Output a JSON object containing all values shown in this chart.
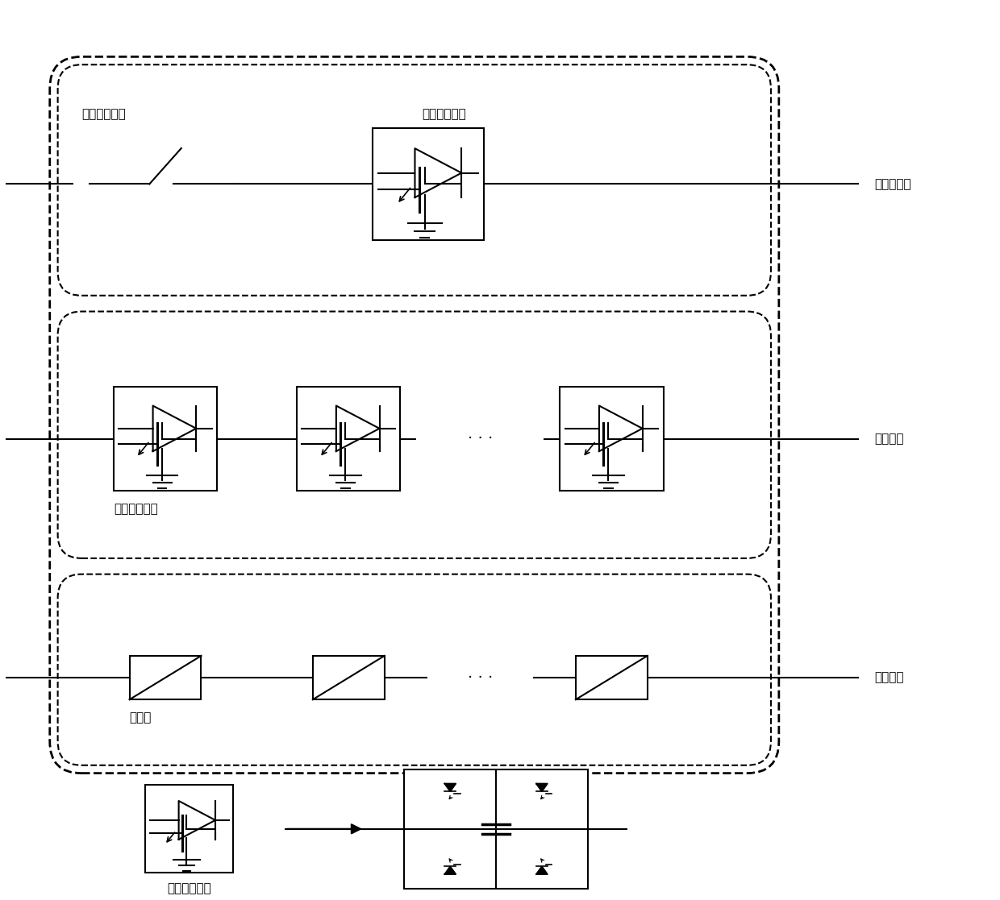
{
  "bg_color": "#ffffff",
  "line_color": "#000000",
  "text_color": "#000000",
  "labels": {
    "main_branch": "主流通支路",
    "transfer_branch": "转移支路",
    "energy_branch": "耗能支路",
    "fast_switch": "快速机械开关",
    "power_module_top": "电力电子模块",
    "power_module_transfer": "电力电子模块",
    "lightning_arrester": "避雷器",
    "power_module_bottom": "电力电子模块"
  },
  "figsize": [
    12.4,
    11.17
  ],
  "dpi": 100
}
